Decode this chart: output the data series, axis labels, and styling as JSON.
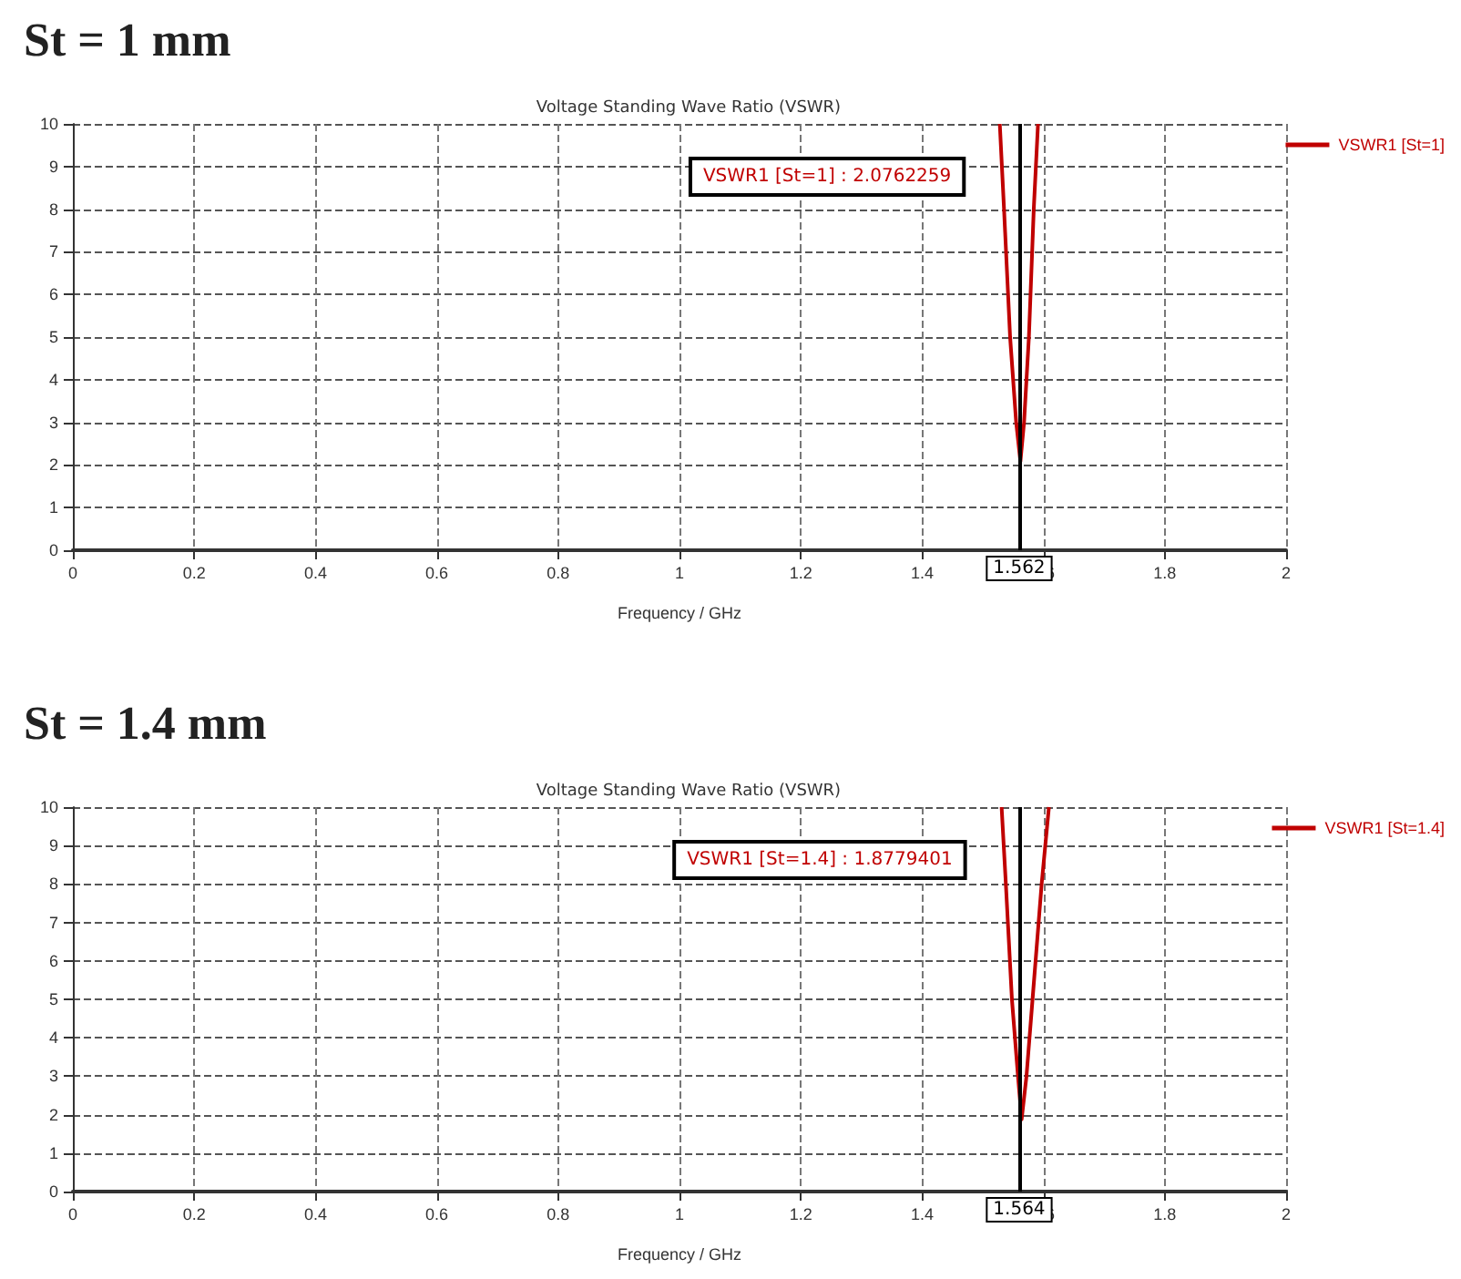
{
  "chart_data": [
    {
      "type": "line",
      "title": "St = 1 mm",
      "subtitle": "Voltage Standing Wave Ratio (VSWR)",
      "xlabel": "Frequency / GHz",
      "series": [
        {
          "name": "VSWR1 [St=1]",
          "color": "#c00000",
          "x": [
            1.528,
            1.535,
            1.545,
            1.555,
            1.562,
            1.568,
            1.576,
            1.584,
            1.591
          ],
          "values": [
            10,
            8,
            5,
            3,
            2.08,
            3,
            5,
            8,
            10
          ]
        }
      ],
      "xlim": [
        0,
        2
      ],
      "xticks": [
        0,
        0.2,
        0.4,
        0.6,
        0.8,
        1,
        1.2,
        1.4,
        1.6,
        1.8,
        2
      ],
      "ylim": [
        0,
        10
      ],
      "yticks": [
        0,
        1,
        2,
        3,
        4,
        5,
        6,
        7,
        8,
        9,
        10
      ],
      "ref_lines": [
        {
          "axis": "x",
          "value": 1.562,
          "label": "1.562",
          "color": "#000000"
        }
      ],
      "annotations": [
        "VSWR1 [St=1] : 2.0762259"
      ],
      "grid": true,
      "legend": "top right",
      "marker": "none",
      "line_style": "solid"
    },
    {
      "type": "line",
      "title": "St = 1.4 mm",
      "subtitle": "Voltage Standing Wave Ratio (VSWR)",
      "xlabel": "Frequency / GHz",
      "series": [
        {
          "name": "VSWR1 [St=1.4]",
          "color": "#c00000",
          "x": [
            1.531,
            1.538,
            1.548,
            1.558,
            1.564,
            1.572,
            1.582,
            1.597,
            1.609
          ],
          "values": [
            10,
            8,
            5,
            3,
            1.88,
            3,
            5,
            8,
            10
          ]
        }
      ],
      "xlim": [
        0,
        2
      ],
      "xticks": [
        0,
        0.2,
        0.4,
        0.6,
        0.8,
        1,
        1.2,
        1.4,
        1.6,
        1.8,
        2
      ],
      "ylim": [
        0,
        10
      ],
      "yticks": [
        0,
        1,
        2,
        3,
        4,
        5,
        6,
        7,
        8,
        9,
        10
      ],
      "ref_lines": [
        {
          "axis": "x",
          "value": 1.564,
          "label": "1.564",
          "color": "#000000"
        }
      ],
      "annotations": [
        "VSWR1 [St=1.4] : 1.8779401"
      ],
      "grid": true,
      "legend": "top right",
      "marker": "none",
      "line_style": "solid"
    }
  ]
}
